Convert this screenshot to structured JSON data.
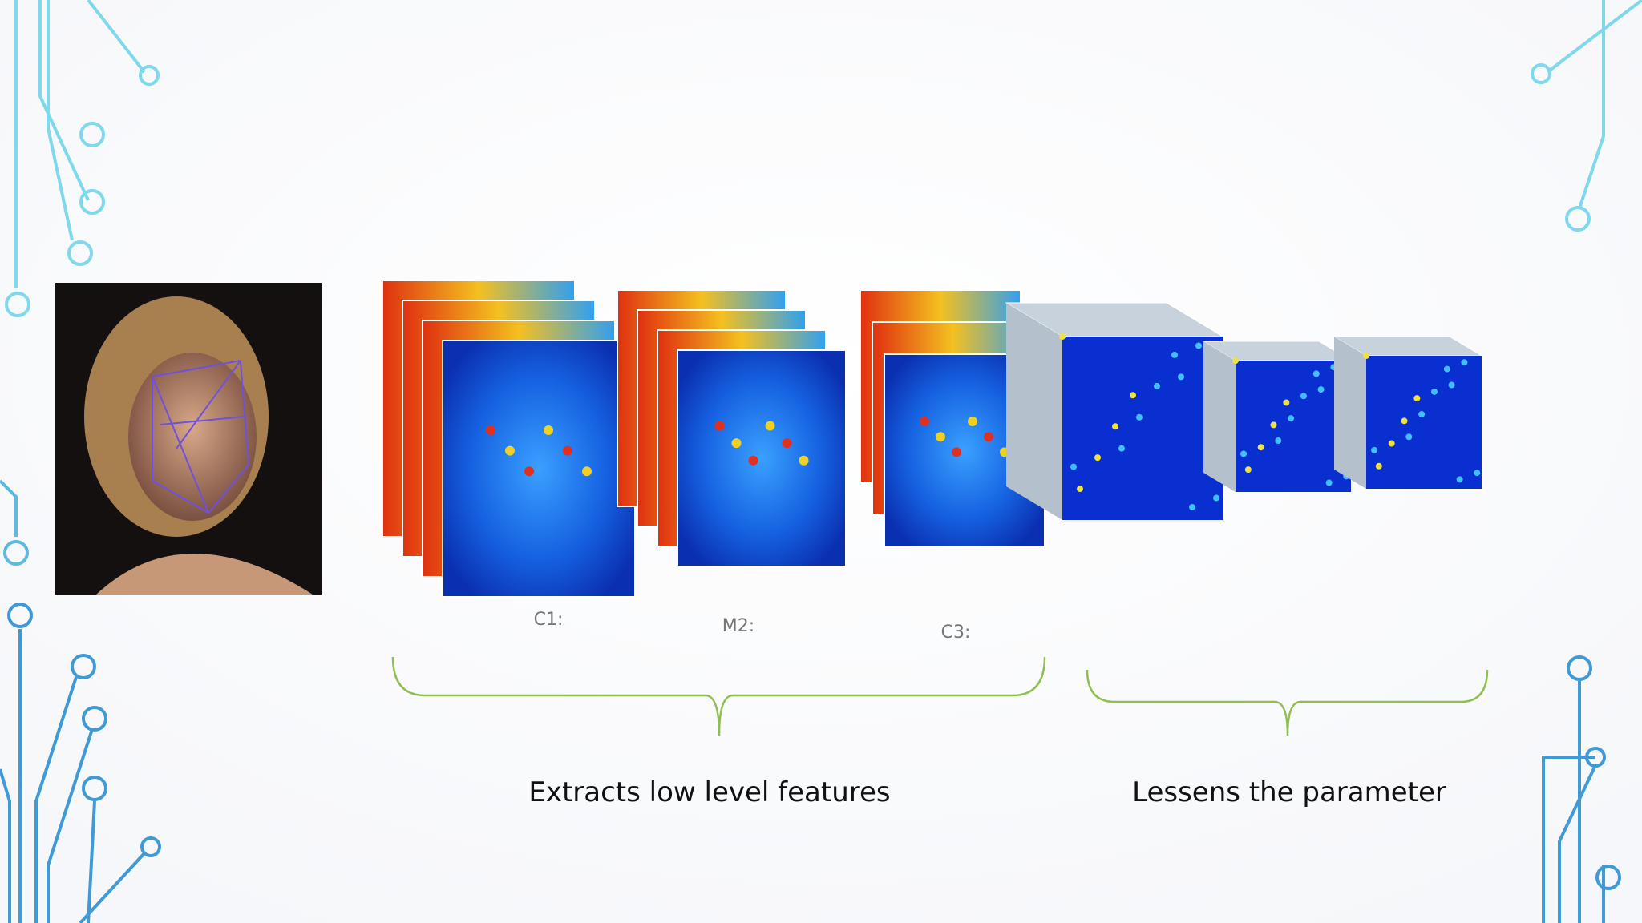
{
  "layers": [
    {
      "label": "C1:"
    },
    {
      "label": "M2:"
    },
    {
      "label": "C3:"
    }
  ],
  "groups": [
    {
      "label": "Extracts low level features"
    },
    {
      "label": "Lessens the parameter"
    }
  ]
}
